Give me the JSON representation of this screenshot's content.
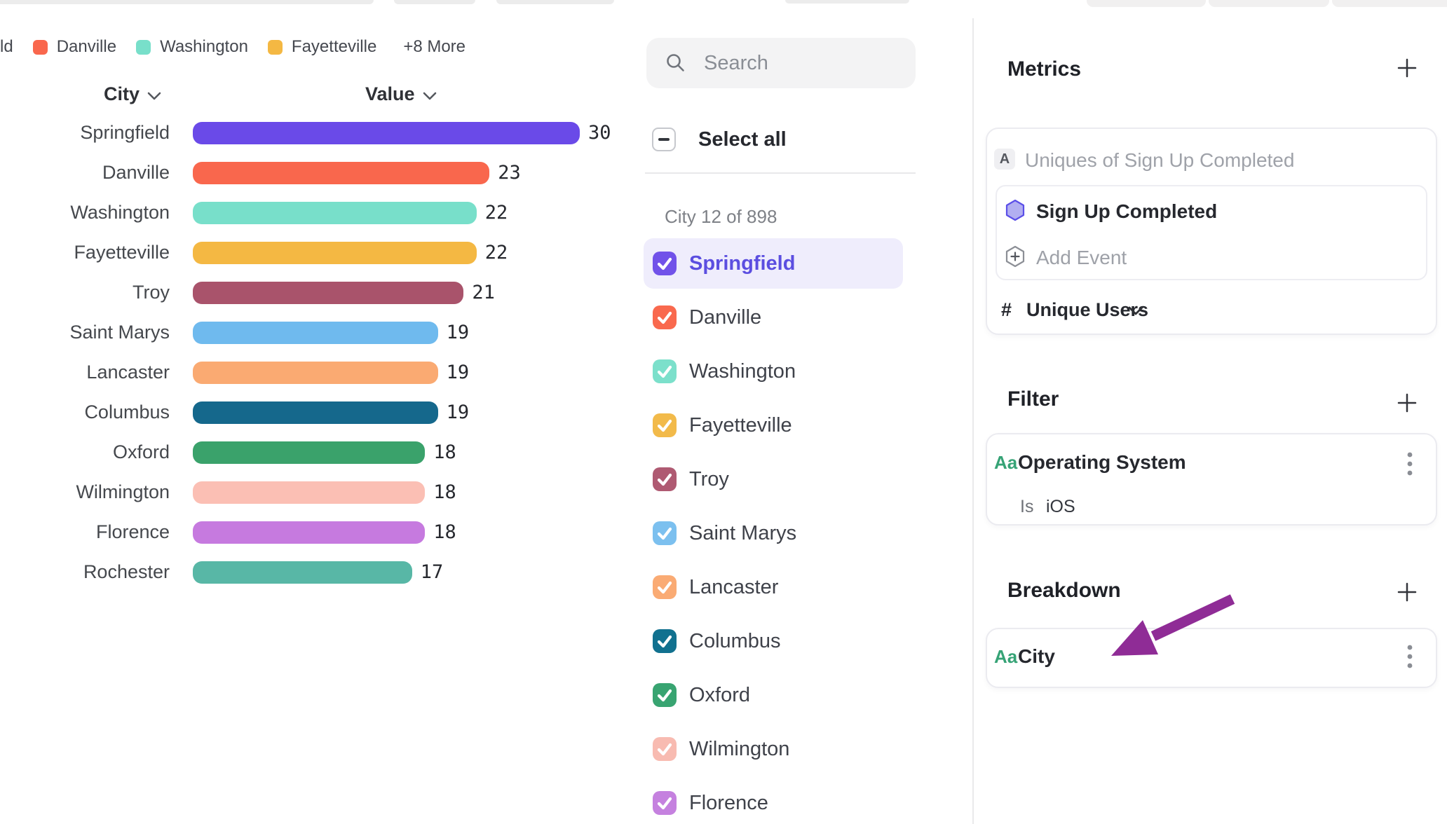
{
  "chart_data": {
    "type": "bar",
    "orientation": "horizontal",
    "title": "",
    "xlabel": "",
    "ylabel": "City",
    "xlim": [
      0,
      30
    ],
    "grid": false,
    "categories": [
      "Springfield",
      "Danville",
      "Washington",
      "Fayetteville",
      "Troy",
      "Saint Marys",
      "Lancaster",
      "Columbus",
      "Oxford",
      "Wilmington",
      "Florence",
      "Rochester"
    ],
    "values": [
      30,
      23,
      22,
      22,
      21,
      19,
      19,
      19,
      18,
      18,
      18,
      17
    ],
    "colors": [
      "#6A4AE8",
      "#F9674D",
      "#78DFCA",
      "#F4B843",
      "#A9536B",
      "#6FBAEE",
      "#FAAA72",
      "#15688C",
      "#3AA26B",
      "#FBBFB4",
      "#C67ADF",
      "#58B7A6"
    ],
    "columns": {
      "city": "City",
      "value": "Value"
    },
    "legend": {
      "position": "top",
      "clipped_item": "ld",
      "items": [
        {
          "label": "Danville",
          "color": "#F9674D"
        },
        {
          "label": "Washington",
          "color": "#78DFCA"
        },
        {
          "label": "Fayetteville",
          "color": "#F4B843"
        }
      ],
      "more_label": "+8 More"
    }
  },
  "list": {
    "search_placeholder": "Search",
    "select_all_label": "Select all",
    "select_all_state": "indeterminate",
    "count_label": "City 12 of 898",
    "items": [
      {
        "label": "Springfield",
        "color": "#7152E9",
        "checked": true,
        "active": true
      },
      {
        "label": "Danville",
        "color": "#F9694E",
        "checked": true,
        "active": false
      },
      {
        "label": "Washington",
        "color": "#7CE0CB",
        "checked": true,
        "active": false
      },
      {
        "label": "Fayetteville",
        "color": "#F2BA4A",
        "checked": true,
        "active": false
      },
      {
        "label": "Troy",
        "color": "#AF5A72",
        "checked": true,
        "active": false
      },
      {
        "label": "Saint Marys",
        "color": "#7CC0EF",
        "checked": true,
        "active": false
      },
      {
        "label": "Lancaster",
        "color": "#FAAB74",
        "checked": true,
        "active": false
      },
      {
        "label": "Columbus",
        "color": "#11718F",
        "checked": true,
        "active": false
      },
      {
        "label": "Oxford",
        "color": "#38A471",
        "checked": true,
        "active": false
      },
      {
        "label": "Wilmington",
        "color": "#F8BBB1",
        "checked": true,
        "active": false
      },
      {
        "label": "Florence",
        "color": "#C581DF",
        "checked": true,
        "active": false
      }
    ]
  },
  "panel": {
    "metrics": {
      "title": "Metrics",
      "formula_badge": "A",
      "formula": "Uniques of Sign Up Completed",
      "event_name": "Sign Up Completed",
      "add_event_label": "Add Event",
      "measure_symbol": "#",
      "measure_label": "Unique Users"
    },
    "filter": {
      "title": "Filter",
      "badge": "Aa",
      "property": "Operating System",
      "operator": "Is",
      "value": "iOS"
    },
    "breakdown": {
      "title": "Breakdown",
      "badge": "Aa",
      "property": "City"
    }
  },
  "colors": {
    "accent_purple": "#6A4AE8",
    "active_row_bg": "#EFEDFC",
    "active_text": "#5B4EE0",
    "badge_green": "#36A376",
    "annotation_arrow": "#8F2C96"
  }
}
